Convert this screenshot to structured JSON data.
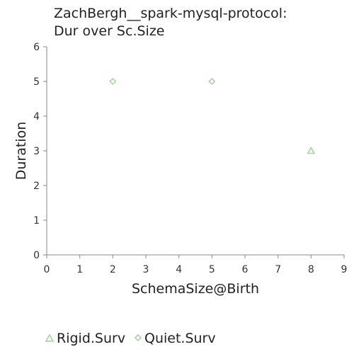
{
  "chart_data": {
    "type": "scatter",
    "title": [
      "ZachBergh__spark-mysql-protocol:",
      "Dur over Sc.Size"
    ],
    "xlabel": "SchemaSize@Birth",
    "ylabel": "Duration",
    "xlim": [
      0,
      9
    ],
    "ylim": [
      0,
      6
    ],
    "xticks": [
      "0",
      "1",
      "2",
      "3",
      "4",
      "5",
      "6",
      "7",
      "8",
      "9"
    ],
    "yticks": [
      "0",
      "1",
      "2",
      "3",
      "4",
      "5",
      "6"
    ],
    "grid": false,
    "legend_position": "bottom",
    "series": [
      {
        "name": "Rigid.Surv",
        "marker": "triangle",
        "color": "#9fd39a",
        "points": [
          {
            "x": 8,
            "y": 3
          }
        ]
      },
      {
        "name": "Quiet.Surv",
        "marker": "diamond",
        "color": "#9fd39a",
        "points": [
          {
            "x": 2,
            "y": 5
          },
          {
            "x": 5,
            "y": 5
          }
        ]
      }
    ]
  }
}
